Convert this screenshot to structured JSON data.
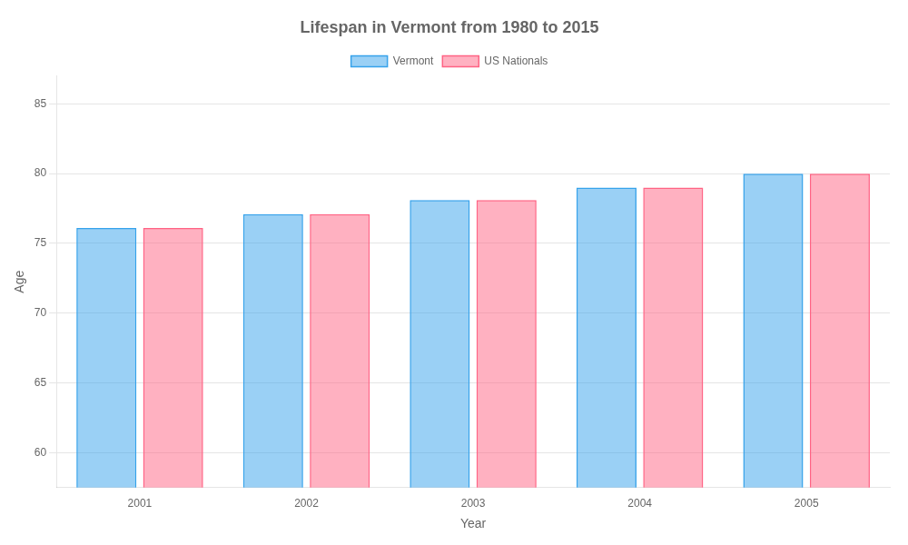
{
  "chart_data": {
    "type": "bar",
    "title": "Lifespan in Vermont from 1980 to 2015",
    "xlabel": "Year",
    "ylabel": "Age",
    "categories": [
      "2001",
      "2002",
      "2003",
      "2004",
      "2005"
    ],
    "series": [
      {
        "name": "Vermont",
        "values": [
          76.1,
          77.1,
          78.1,
          79.0,
          80.0
        ]
      },
      {
        "name": "US Nationals",
        "values": [
          76.1,
          77.1,
          78.1,
          79.0,
          80.0
        ]
      }
    ],
    "ylim": [
      57.5,
      87
    ],
    "yticks": [
      60,
      65,
      70,
      75,
      80,
      85
    ],
    "grid": "y",
    "legend": "top"
  }
}
